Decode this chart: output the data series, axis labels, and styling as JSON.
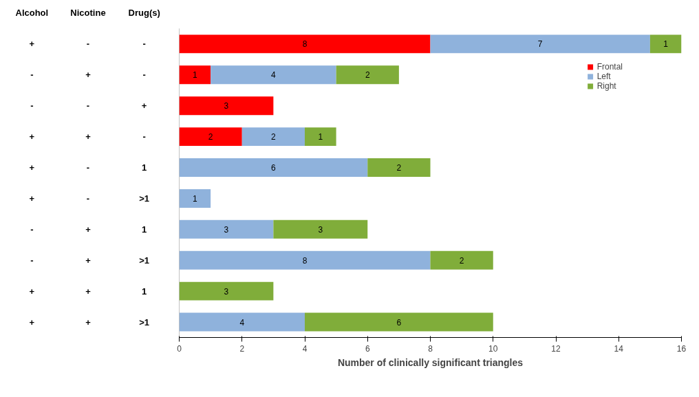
{
  "chart_data": {
    "type": "bar",
    "orientation": "horizontal",
    "stacked": true,
    "categories": [
      "+ - -",
      "- + -",
      "- - +",
      "+ + -",
      "+ - 1",
      "+ - >1",
      "- + 1",
      "- + >1",
      "+ + 1",
      "+ + >1"
    ],
    "annotations": [
      "Alcohol",
      "Nicotine",
      "Drug(s)"
    ],
    "series": [
      {
        "name": "Frontal",
        "color": "#ff0000",
        "values": [
          8,
          1,
          3,
          2,
          null,
          null,
          null,
          null,
          null,
          null
        ]
      },
      {
        "name": "Left",
        "color": "#8fb2dc",
        "values": [
          7,
          4,
          null,
          2,
          6,
          1,
          3,
          8,
          null,
          4
        ]
      },
      {
        "name": "Right",
        "color": "#80ad3a",
        "values": [
          1,
          2,
          null,
          1,
          2,
          null,
          3,
          2,
          3,
          6
        ]
      }
    ],
    "xlabel": "Number of clinically significant triangles",
    "xlim": [
      0,
      16
    ],
    "xticks": [
      0,
      2,
      4,
      6,
      8,
      10,
      12,
      14,
      16
    ],
    "data_labels": true,
    "grid": false,
    "legend": "top right"
  }
}
